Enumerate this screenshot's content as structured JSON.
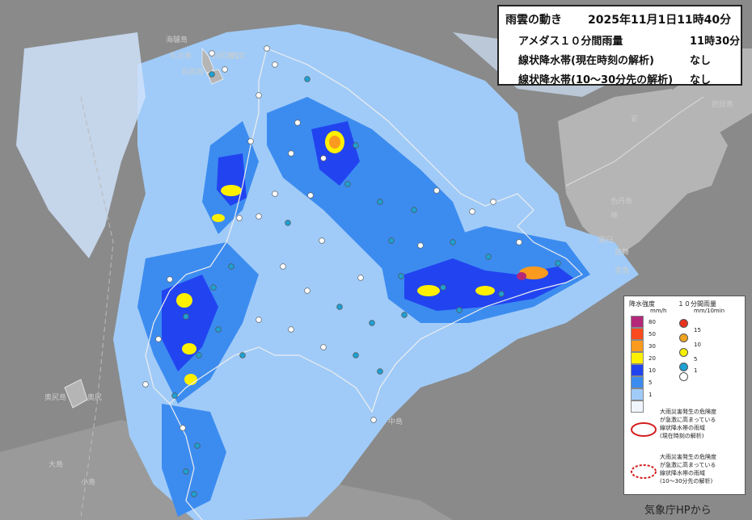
{
  "header": {
    "title": "雨雲の動き",
    "datetime": "2025年11月1日11時40分",
    "amedas_label": "アメダス１０分間雨量",
    "amedas_value": "11時30分",
    "linear_now_label": "線状降水帯(現在時刻の解析)",
    "linear_now_value": "なし",
    "linear_future_label": "線状降水帯(10～30分先の解析)",
    "linear_future_value": "なし"
  },
  "place_labels": [
    "海驢島",
    "礼文島",
    "利尻島",
    "礼文",
    "利尻富士",
    "奥尻島",
    "奥尻",
    "大島",
    "小島",
    "中島",
    "色丹島",
    "歯舞",
    "択捉島",
    "安",
    "羅臼",
    "神",
    "宮島"
  ],
  "legend": {
    "intensity_title": "降水強度",
    "intensity_unit": "mm/h",
    "intensity": [
      {
        "label": "80",
        "color": "#b4287a"
      },
      {
        "label": "50",
        "color": "#fa4a1e"
      },
      {
        "label": "30",
        "color": "#fa9a1e"
      },
      {
        "label": "20",
        "color": "#fff000"
      },
      {
        "label": "10",
        "color": "#2244f0"
      },
      {
        "label": "5",
        "color": "#3c8cf0"
      },
      {
        "label": "1",
        "color": "#a0cbf8"
      },
      {
        "label": "",
        "color": "#f0f5fd"
      }
    ],
    "amedas_title": "１０分間雨量",
    "amedas_unit": "mm/10min",
    "amedas": [
      {
        "label": "15",
        "color": "#e8321e"
      },
      {
        "label": "10",
        "color": "#f0a31e"
      },
      {
        "label": "5",
        "color": "#f5f000"
      },
      {
        "label": "1",
        "color": "#1ea0d2"
      },
      {
        "label": "",
        "color": "#ffffff"
      }
    ],
    "linear_now_note": [
      "大雨災害発生の危険度",
      "が急激に高まっている",
      "線状降水帯の雨域",
      "(現在時刻の解析)"
    ],
    "linear_future_note": [
      "大雨災害発生の危険度",
      "が急激に高まっている",
      "線状降水帯の雨域",
      "(10～30分先の解析)"
    ]
  },
  "credit": "気象庁HPから",
  "colors": {
    "sea": "#8a8a8a",
    "land": "#b4b4b4",
    "rain_light": "#a0cbf8",
    "rain_mid": "#3c8cf0",
    "rain_heavy": "#2244f0",
    "rain_20": "#fff000",
    "rain_30": "#fa9a1e",
    "rain_80": "#b4287a"
  }
}
